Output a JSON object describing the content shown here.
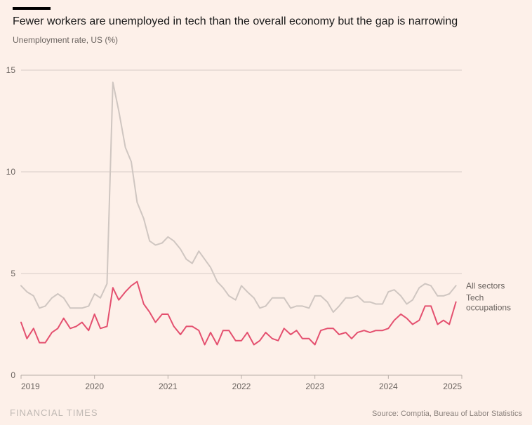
{
  "title": "Fewer workers are unemployed in tech than the overall economy but the gap is narrowing",
  "title_fontsize": 16,
  "subtitle": "Unemployment rate, US (%)",
  "subtitle_fontsize": 12,
  "brand": "FINANCIAL TIMES",
  "brand_fontsize": 13,
  "source": "Source: Comptia, Bureau of Labor Statistics",
  "source_fontsize": 11,
  "chart": {
    "type": "line",
    "background_color": "#fdf0e9",
    "grid_color": "#d6cdc7",
    "axis_color": "#b8aea8",
    "axis_fontsize": 12,
    "legend_fontsize": 12,
    "x": {
      "min": 2019.0,
      "max": 2025.0,
      "ticks": [
        2019,
        2020,
        2021,
        2022,
        2023,
        2024,
        2025
      ],
      "tick_labels": [
        "2019",
        "2020",
        "2021",
        "2022",
        "2023",
        "2024",
        "2025"
      ]
    },
    "y": {
      "min": 0,
      "max": 15,
      "ticks": [
        0,
        5,
        10,
        15
      ],
      "tick_labels": [
        "0",
        "5",
        "10",
        "15"
      ]
    },
    "series": [
      {
        "name": "All sectors",
        "label": "All sectors",
        "color": "#cfc6c1",
        "line_width": 2,
        "x": [
          2019.0,
          2019.08,
          2019.17,
          2019.25,
          2019.33,
          2019.42,
          2019.5,
          2019.58,
          2019.67,
          2019.75,
          2019.83,
          2019.92,
          2020.0,
          2020.08,
          2020.17,
          2020.25,
          2020.33,
          2020.42,
          2020.5,
          2020.58,
          2020.67,
          2020.75,
          2020.83,
          2020.92,
          2021.0,
          2021.08,
          2021.17,
          2021.25,
          2021.33,
          2021.42,
          2021.5,
          2021.58,
          2021.67,
          2021.75,
          2021.83,
          2021.92,
          2022.0,
          2022.08,
          2022.17,
          2022.25,
          2022.33,
          2022.42,
          2022.5,
          2022.58,
          2022.67,
          2022.75,
          2022.83,
          2022.92,
          2023.0,
          2023.08,
          2023.17,
          2023.25,
          2023.33,
          2023.42,
          2023.5,
          2023.58,
          2023.67,
          2023.75,
          2023.83,
          2023.92,
          2024.0,
          2024.08,
          2024.17,
          2024.25,
          2024.33,
          2024.42,
          2024.5,
          2024.58,
          2024.67,
          2024.75,
          2024.83,
          2024.92
        ],
        "y": [
          4.4,
          4.1,
          3.9,
          3.3,
          3.4,
          3.8,
          4.0,
          3.8,
          3.3,
          3.3,
          3.3,
          3.4,
          4.0,
          3.8,
          4.5,
          14.4,
          13.0,
          11.2,
          10.5,
          8.5,
          7.7,
          6.6,
          6.4,
          6.5,
          6.8,
          6.6,
          6.2,
          5.7,
          5.5,
          6.1,
          5.7,
          5.3,
          4.6,
          4.3,
          3.9,
          3.7,
          4.4,
          4.1,
          3.8,
          3.3,
          3.4,
          3.8,
          3.8,
          3.8,
          3.3,
          3.4,
          3.4,
          3.3,
          3.9,
          3.9,
          3.6,
          3.1,
          3.4,
          3.8,
          3.8,
          3.9,
          3.6,
          3.6,
          3.5,
          3.5,
          4.1,
          4.2,
          3.9,
          3.5,
          3.7,
          4.3,
          4.5,
          4.4,
          3.9,
          3.9,
          4.0,
          4.4
        ]
      },
      {
        "name": "Tech occupations",
        "label": "Tech occupations",
        "color": "#e4506f",
        "line_width": 2,
        "x": [
          2019.0,
          2019.08,
          2019.17,
          2019.25,
          2019.33,
          2019.42,
          2019.5,
          2019.58,
          2019.67,
          2019.75,
          2019.83,
          2019.92,
          2020.0,
          2020.08,
          2020.17,
          2020.25,
          2020.33,
          2020.42,
          2020.5,
          2020.58,
          2020.67,
          2020.75,
          2020.83,
          2020.92,
          2021.0,
          2021.08,
          2021.17,
          2021.25,
          2021.33,
          2021.42,
          2021.5,
          2021.58,
          2021.67,
          2021.75,
          2021.83,
          2021.92,
          2022.0,
          2022.08,
          2022.17,
          2022.25,
          2022.33,
          2022.42,
          2022.5,
          2022.58,
          2022.67,
          2022.75,
          2022.83,
          2022.92,
          2023.0,
          2023.08,
          2023.17,
          2023.25,
          2023.33,
          2023.42,
          2023.5,
          2023.58,
          2023.67,
          2023.75,
          2023.83,
          2023.92,
          2024.0,
          2024.08,
          2024.17,
          2024.25,
          2024.33,
          2024.42,
          2024.5,
          2024.58,
          2024.67,
          2024.75,
          2024.83,
          2024.92
        ],
        "y": [
          2.6,
          1.8,
          2.3,
          1.6,
          1.6,
          2.1,
          2.3,
          2.8,
          2.3,
          2.4,
          2.6,
          2.2,
          3.0,
          2.3,
          2.4,
          4.3,
          3.7,
          4.1,
          4.4,
          4.6,
          3.5,
          3.1,
          2.6,
          3.0,
          3.0,
          2.4,
          2.0,
          2.4,
          2.4,
          2.2,
          1.5,
          2.1,
          1.5,
          2.2,
          2.2,
          1.7,
          1.7,
          2.1,
          1.5,
          1.7,
          2.1,
          1.8,
          1.7,
          2.3,
          2.0,
          2.2,
          1.8,
          1.8,
          1.5,
          2.2,
          2.3,
          2.3,
          2.0,
          2.1,
          1.8,
          2.1,
          2.2,
          2.1,
          2.2,
          2.2,
          2.3,
          2.7,
          3.0,
          2.8,
          2.5,
          2.7,
          3.4,
          3.4,
          2.5,
          2.7,
          2.5,
          3.6
        ]
      }
    ]
  }
}
